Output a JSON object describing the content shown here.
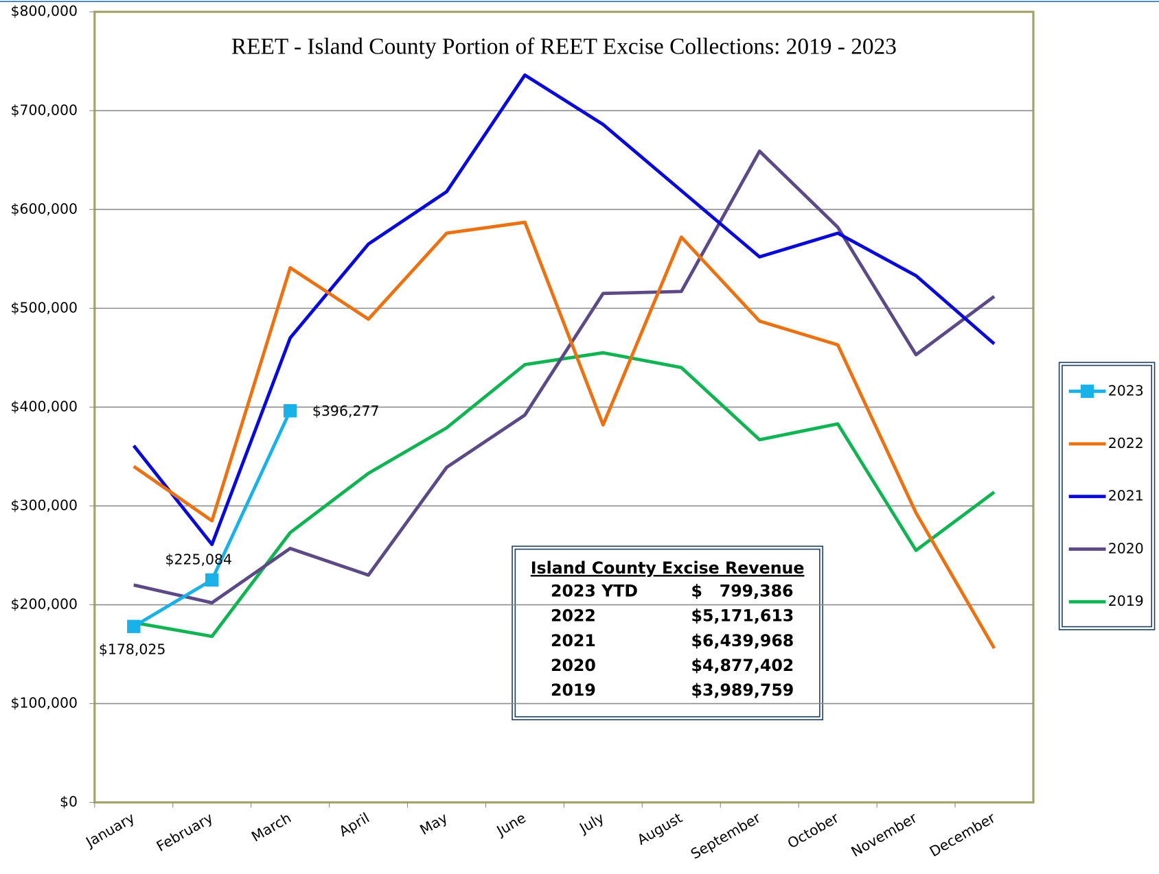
{
  "chart_data": {
    "type": "line",
    "title": "REET  - Island County Portion of REET Excise Collections: 2019 - 2023",
    "categories": [
      "January",
      "February",
      "March",
      "April",
      "May",
      "June",
      "July",
      "August",
      "September",
      "October",
      "November",
      "December"
    ],
    "ylim": [
      0,
      800000
    ],
    "yticks": [
      {
        "value": 0,
        "label": "$0"
      },
      {
        "value": 100000,
        "label": "$100,000"
      },
      {
        "value": 200000,
        "label": "$200,000"
      },
      {
        "value": 300000,
        "label": "$300,000"
      },
      {
        "value": 400000,
        "label": "$400,000"
      },
      {
        "value": 500000,
        "label": "$500,000"
      },
      {
        "value": 600000,
        "label": "$600,000"
      },
      {
        "value": 700000,
        "label": "$700,000"
      },
      {
        "value": 800000,
        "label": "$800,000"
      }
    ],
    "grid": true,
    "legend": "right",
    "series": [
      {
        "name": "2023",
        "color": "#19b2e8",
        "marker": "square",
        "values": [
          178025,
          225084,
          396277,
          null,
          null,
          null,
          null,
          null,
          null,
          null,
          null,
          null
        ],
        "value_labels": [
          "$178,025",
          "$225,084",
          "$396,277",
          null,
          null,
          null,
          null,
          null,
          null,
          null,
          null,
          null
        ]
      },
      {
        "name": "2022",
        "color": "#ec7211",
        "values": [
          340000,
          285000,
          541000,
          489000,
          576000,
          587000,
          382000,
          572000,
          487000,
          463000,
          293000,
          156000
        ]
      },
      {
        "name": "2021",
        "color": "#0a0ad8",
        "values": [
          361000,
          261000,
          470000,
          565000,
          618000,
          736000,
          686000,
          619000,
          552000,
          576000,
          533000,
          464000
        ]
      },
      {
        "name": "2020",
        "color": "#5c4a87",
        "values": [
          220000,
          202000,
          257000,
          230000,
          339000,
          392000,
          515000,
          517000,
          659000,
          582000,
          453000,
          512000
        ]
      },
      {
        "name": "2019",
        "color": "#10b452",
        "values": [
          182000,
          168000,
          273000,
          333000,
          379000,
          443000,
          455000,
          440000,
          367000,
          383000,
          255000,
          314000
        ]
      }
    ],
    "table": {
      "title": "Island County Excise Revenue",
      "rows": [
        [
          "2023 YTD",
          "$   799,386"
        ],
        [
          "2022",
          "$5,171,613"
        ],
        [
          "2021",
          "$6,439,968"
        ],
        [
          "2020",
          "$4,877,402"
        ],
        [
          "2019",
          "$3,989,759"
        ]
      ]
    }
  }
}
